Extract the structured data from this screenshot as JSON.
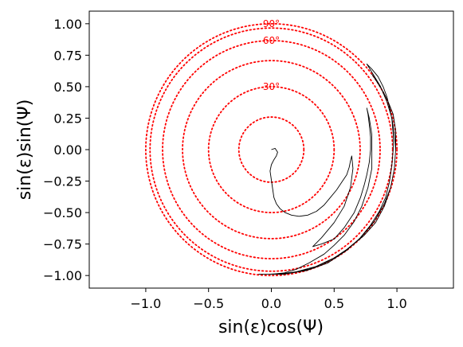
{
  "chart_data": {
    "type": "line",
    "title": "",
    "xlabel": "sin(ε)cos(Ψ)",
    "ylabel": "sin(ε)sin(Ψ)",
    "xlim": [
      -1.45,
      1.45
    ],
    "ylim": [
      -1.1,
      1.1
    ],
    "xticks": [
      -1.0,
      -0.5,
      0.0,
      0.5,
      1.0
    ],
    "xtick_labels": [
      "−1.0",
      "−0.5",
      "0.0",
      "0.5",
      "1.0"
    ],
    "yticks": [
      1.0,
      0.75,
      0.5,
      0.25,
      0.0,
      -0.25,
      -0.5,
      -0.75,
      -1.0
    ],
    "ytick_labels": [
      "1.00",
      "0.75",
      "0.50",
      "0.25",
      "0.00",
      "−0.25",
      "−0.50",
      "−0.75",
      "−1.00"
    ],
    "grid": false,
    "legend": "none",
    "reference_rings": {
      "color": "#ff0000",
      "style": "dotted",
      "radii": [
        0.2588,
        0.5,
        0.7071,
        0.866,
        0.9659,
        1.0
      ],
      "labels": [
        {
          "text": "30°",
          "radius": 0.5
        },
        {
          "text": "60°",
          "radius": 0.866
        },
        {
          "text": "90°",
          "radius": 1.0
        }
      ]
    },
    "series": [
      {
        "color": "#000000",
        "points": [
          [
            0.0,
            0.0
          ],
          [
            0.03,
            0.01
          ],
          [
            0.05,
            -0.02
          ],
          [
            0.04,
            -0.05
          ],
          [
            0.02,
            -0.08
          ],
          [
            0.0,
            -0.12
          ],
          [
            -0.01,
            -0.17
          ],
          [
            0.0,
            -0.24
          ],
          [
            0.01,
            -0.31
          ],
          [
            0.02,
            -0.38
          ],
          [
            0.04,
            -0.43
          ],
          [
            0.07,
            -0.47
          ],
          [
            0.11,
            -0.5
          ],
          [
            0.16,
            -0.52
          ],
          [
            0.22,
            -0.53
          ],
          [
            0.29,
            -0.52
          ],
          [
            0.36,
            -0.49
          ],
          [
            0.42,
            -0.44
          ],
          [
            0.47,
            -0.38
          ],
          [
            0.52,
            -0.32
          ],
          [
            0.56,
            -0.26
          ],
          [
            0.6,
            -0.2
          ],
          [
            0.62,
            -0.14
          ],
          [
            0.63,
            -0.09
          ],
          [
            0.64,
            -0.05
          ],
          [
            0.65,
            -0.15
          ],
          [
            0.63,
            -0.3
          ],
          [
            0.58,
            -0.45
          ],
          [
            0.5,
            -0.58
          ],
          [
            0.4,
            -0.7
          ],
          [
            0.33,
            -0.77
          ],
          [
            0.4,
            -0.75
          ],
          [
            0.5,
            -0.71
          ],
          [
            0.58,
            -0.62
          ],
          [
            0.66,
            -0.5
          ],
          [
            0.71,
            -0.38
          ],
          [
            0.74,
            -0.28
          ],
          [
            0.76,
            -0.2
          ],
          [
            0.78,
            -0.1
          ],
          [
            0.79,
            0.0
          ],
          [
            0.79,
            0.1
          ],
          [
            0.78,
            0.2
          ],
          [
            0.77,
            0.28
          ],
          [
            0.76,
            0.33
          ],
          [
            0.78,
            0.25
          ],
          [
            0.8,
            0.12
          ],
          [
            0.8,
            0.0
          ],
          [
            0.8,
            -0.15
          ],
          [
            0.77,
            -0.3
          ],
          [
            0.72,
            -0.45
          ],
          [
            0.66,
            -0.57
          ],
          [
            0.58,
            -0.68
          ],
          [
            0.5,
            -0.76
          ],
          [
            0.42,
            -0.83
          ],
          [
            0.3,
            -0.9
          ],
          [
            0.2,
            -0.95
          ],
          [
            0.1,
            -0.98
          ],
          [
            0.0,
            -0.99
          ],
          [
            -0.1,
            -0.99
          ],
          [
            -0.02,
            -0.99
          ],
          [
            0.15,
            -0.98
          ],
          [
            0.3,
            -0.95
          ],
          [
            0.45,
            -0.89
          ],
          [
            0.58,
            -0.81
          ],
          [
            0.7,
            -0.71
          ],
          [
            0.79,
            -0.6
          ],
          [
            0.86,
            -0.49
          ],
          [
            0.91,
            -0.38
          ],
          [
            0.94,
            -0.26
          ],
          [
            0.96,
            -0.12
          ],
          [
            0.97,
            0.0
          ],
          [
            0.97,
            0.12
          ],
          [
            0.96,
            0.24
          ],
          [
            0.94,
            0.34
          ],
          [
            0.92,
            0.42
          ],
          [
            0.89,
            0.5
          ],
          [
            0.85,
            0.58
          ],
          [
            0.8,
            0.64
          ],
          [
            0.76,
            0.68
          ],
          [
            0.81,
            0.6
          ],
          [
            0.87,
            0.5
          ],
          [
            0.92,
            0.38
          ],
          [
            0.96,
            0.25
          ],
          [
            0.98,
            0.12
          ],
          [
            0.99,
            0.0
          ],
          [
            0.98,
            -0.15
          ],
          [
            0.95,
            -0.3
          ],
          [
            0.9,
            -0.45
          ],
          [
            0.83,
            -0.58
          ],
          [
            0.74,
            -0.68
          ],
          [
            0.62,
            -0.78
          ],
          [
            0.5,
            -0.86
          ],
          [
            0.35,
            -0.93
          ],
          [
            0.2,
            -0.97
          ],
          [
            0.05,
            -0.99
          ],
          [
            -0.05,
            -0.99
          ],
          [
            0.1,
            -0.99
          ],
          [
            0.28,
            -0.96
          ],
          [
            0.45,
            -0.9
          ],
          [
            0.6,
            -0.8
          ],
          [
            0.72,
            -0.69
          ],
          [
            0.82,
            -0.57
          ],
          [
            0.9,
            -0.43
          ],
          [
            0.95,
            -0.3
          ],
          [
            0.98,
            -0.15
          ],
          [
            0.99,
            0.0
          ],
          [
            0.99,
            0.15
          ],
          [
            0.97,
            0.28
          ],
          [
            0.93,
            0.38
          ],
          [
            0.89,
            0.46
          ],
          [
            0.84,
            0.54
          ],
          [
            0.8,
            0.6
          ]
        ]
      }
    ]
  }
}
